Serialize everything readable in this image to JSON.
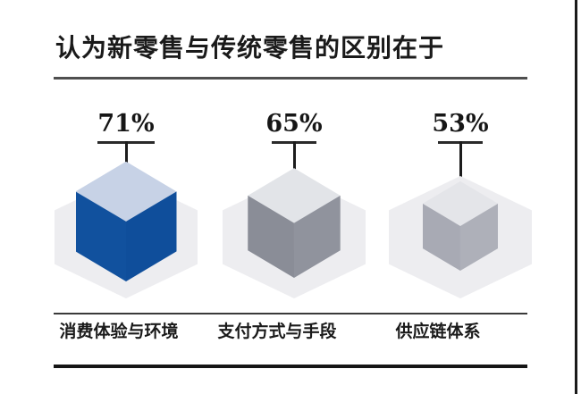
{
  "header": {
    "title": "认为新零售与传统零售的区别在于"
  },
  "chart_data": {
    "type": "bar",
    "variant": "isometric-cube-pictogram",
    "title": "认为新零售与传统零售的区别在于",
    "categories": [
      "消费体验与环境",
      "支付方式与手段",
      "供应链体系"
    ],
    "values": [
      71,
      65,
      53
    ],
    "unit": "%",
    "value_labels": [
      "71%",
      "65%",
      "53%"
    ],
    "value_label_position": "above",
    "grid": false,
    "legend": "none"
  },
  "cubes": [
    {
      "value": 71,
      "value_label": "71%",
      "label": "消费体验与环境",
      "top_color": "#c7d2e6",
      "left_color": "#11519e",
      "right_color": "#0f4e9b"
    },
    {
      "value": 65,
      "value_label": "65%",
      "label": "支付方式与手段",
      "top_color": "#e2e4e8",
      "left_color": "#8a8d97",
      "right_color": "#90939d"
    },
    {
      "value": 53,
      "value_label": "53%",
      "label": "供应链体系",
      "top_color": "#e4e5e9",
      "left_color": "#a8aab4",
      "right_color": "#aeb0b9"
    }
  ],
  "palette": {
    "background": "#ffffff",
    "hex_backdrop": "#ededf0",
    "title_color": "#1a1a1a",
    "rule_gray": "#4f4f4f",
    "rule_black": "#151515",
    "callout_color": "#1c1c1c",
    "accent_blue": "#11519e"
  }
}
